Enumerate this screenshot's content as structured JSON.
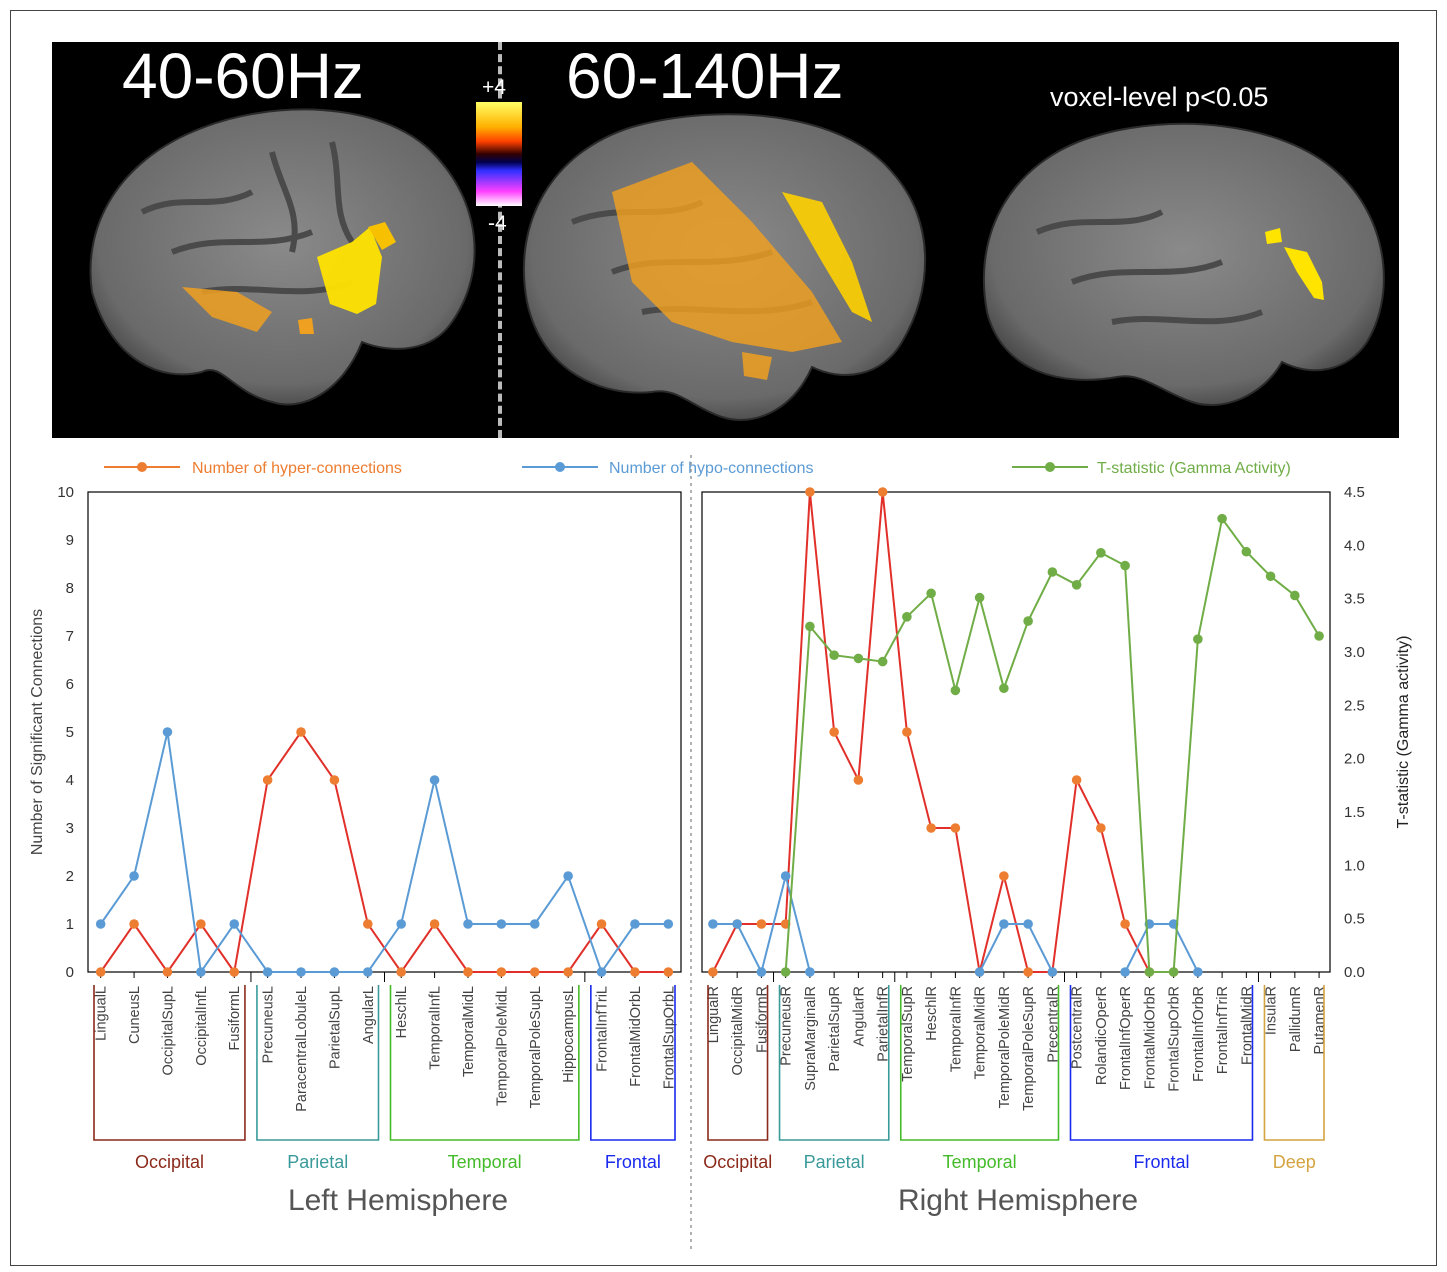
{
  "brain_panel": {
    "band_low": "40-60Hz",
    "band_high": "60-140Hz",
    "colorbar_max": "+4",
    "colorbar_min": "-4",
    "threshold_label": "voxel-level p<0.05"
  },
  "legend": {
    "hyper": "Number of hyper-connections",
    "hypo": "Number of hypo-connections",
    "tstat": "T-statistic (Gamma Activity)"
  },
  "colors": {
    "hyper_line": "#e1302a",
    "hyper_marker": "#ed7d31",
    "hypo": "#5b9bd5",
    "tstat": "#70ad47",
    "occipital": "#8b2a1a",
    "parietal": "#3a9a9a",
    "temporal": "#44bb2a",
    "frontal": "#1a2aee",
    "deep": "#d4a440"
  },
  "chart_data": [
    {
      "type": "line",
      "panel_title": "Left Hemisphere",
      "ylabel": "Number of Significant Connections",
      "ylim": [
        0,
        10
      ],
      "yticks": [
        0,
        1,
        2,
        3,
        4,
        5,
        6,
        7,
        8,
        9,
        10
      ],
      "categories": [
        "LingualL",
        "CuneusL",
        "OccipitalSupL",
        "OccipitalInfL",
        "FusiformL",
        "PrecuneusL",
        "ParacentralLobuleL",
        "ParietalSupL",
        "AngularL",
        "HeschlL",
        "TemporalInfL",
        "TemporalMidL",
        "TemporalPoleMidL",
        "TemporalPoleSupL",
        "HippocampusL",
        "FrontalInfTriL",
        "FrontalMidOrbL",
        "FrontalSupOrbL"
      ],
      "series": [
        {
          "name": "Number of hyper-connections",
          "values": [
            0,
            1,
            0,
            1,
            0,
            4,
            5,
            4,
            1,
            0,
            1,
            0,
            0,
            0,
            0,
            1,
            0,
            0
          ]
        },
        {
          "name": "Number of hypo-connections",
          "values": [
            1,
            2,
            5,
            0,
            1,
            0,
            0,
            0,
            0,
            1,
            4,
            1,
            1,
            1,
            2,
            0,
            1,
            1
          ]
        }
      ],
      "groups": [
        {
          "label": "Occipital",
          "color_key": "occipital",
          "start": 0,
          "end": 4
        },
        {
          "label": "Parietal",
          "color_key": "parietal",
          "start": 5,
          "end": 8
        },
        {
          "label": "Temporal",
          "color_key": "temporal",
          "start": 9,
          "end": 14
        },
        {
          "label": "Frontal",
          "color_key": "frontal",
          "start": 15,
          "end": 17
        }
      ]
    },
    {
      "type": "line",
      "panel_title": "Right Hemisphere",
      "ylim": [
        0,
        10
      ],
      "y2label": "T-statistic (Gamma activity)",
      "y2lim": [
        0,
        4.5
      ],
      "y2ticks": [
        "0.0",
        "0.5",
        "1.0",
        "1.5",
        "2.0",
        "2.5",
        "3.0",
        "3.5",
        "4.0",
        "4.5"
      ],
      "categories": [
        "LingualR",
        "OccipitalMidR",
        "FusiformR",
        "PrecuneusR",
        "SupraMarginalR",
        "ParietalSupR",
        "AngularR",
        "ParietalInfR",
        "TemporalSupR",
        "HeschlR",
        "TemporalInfR",
        "TemporalMidR",
        "TemporalPoleMidR",
        "TemporalPoleSupR",
        "PrecentralR",
        "PostcentralR",
        "RolandicOperR",
        "FrontalInfOperR",
        "FrontalMidOrbR",
        "FrontalSupOrbR",
        "FrontalInfOrbR",
        "FrontalInfTriR",
        "FrontalMidR",
        "InsulaR",
        "PallidumR",
        "PutamenR"
      ],
      "series": [
        {
          "name": "Number of hyper-connections",
          "values": [
            0,
            1,
            1,
            1,
            10,
            5,
            4,
            10,
            5,
            3,
            3,
            0,
            2,
            0,
            0,
            4,
            3,
            1,
            0,
            0,
            null,
            null,
            null,
            null,
            null,
            null
          ]
        },
        {
          "name": "Number of hypo-connections",
          "values": [
            1,
            1,
            0,
            2,
            0,
            null,
            null,
            null,
            null,
            null,
            null,
            0,
            1,
            1,
            0,
            null,
            null,
            0,
            1,
            1,
            0,
            null,
            null,
            null,
            null,
            null
          ]
        },
        {
          "name": "T-statistic (Gamma Activity)",
          "axis": "right",
          "values": [
            null,
            null,
            null,
            0,
            3.24,
            2.97,
            2.94,
            2.91,
            3.33,
            3.55,
            2.64,
            3.51,
            2.66,
            3.29,
            3.75,
            3.63,
            3.93,
            3.81,
            0,
            0,
            3.12,
            4.25,
            3.94,
            3.71,
            3.53,
            3.15
          ]
        }
      ],
      "groups": [
        {
          "label": "Occipital",
          "color_key": "occipital",
          "start": 0,
          "end": 2
        },
        {
          "label": "Parietal",
          "color_key": "parietal",
          "start": 3,
          "end": 7
        },
        {
          "label": "Temporal",
          "color_key": "temporal",
          "start": 8,
          "end": 14
        },
        {
          "label": "Frontal",
          "color_key": "frontal",
          "start": 15,
          "end": 22
        },
        {
          "label": "Deep",
          "color_key": "deep",
          "start": 23,
          "end": 25
        }
      ]
    }
  ]
}
